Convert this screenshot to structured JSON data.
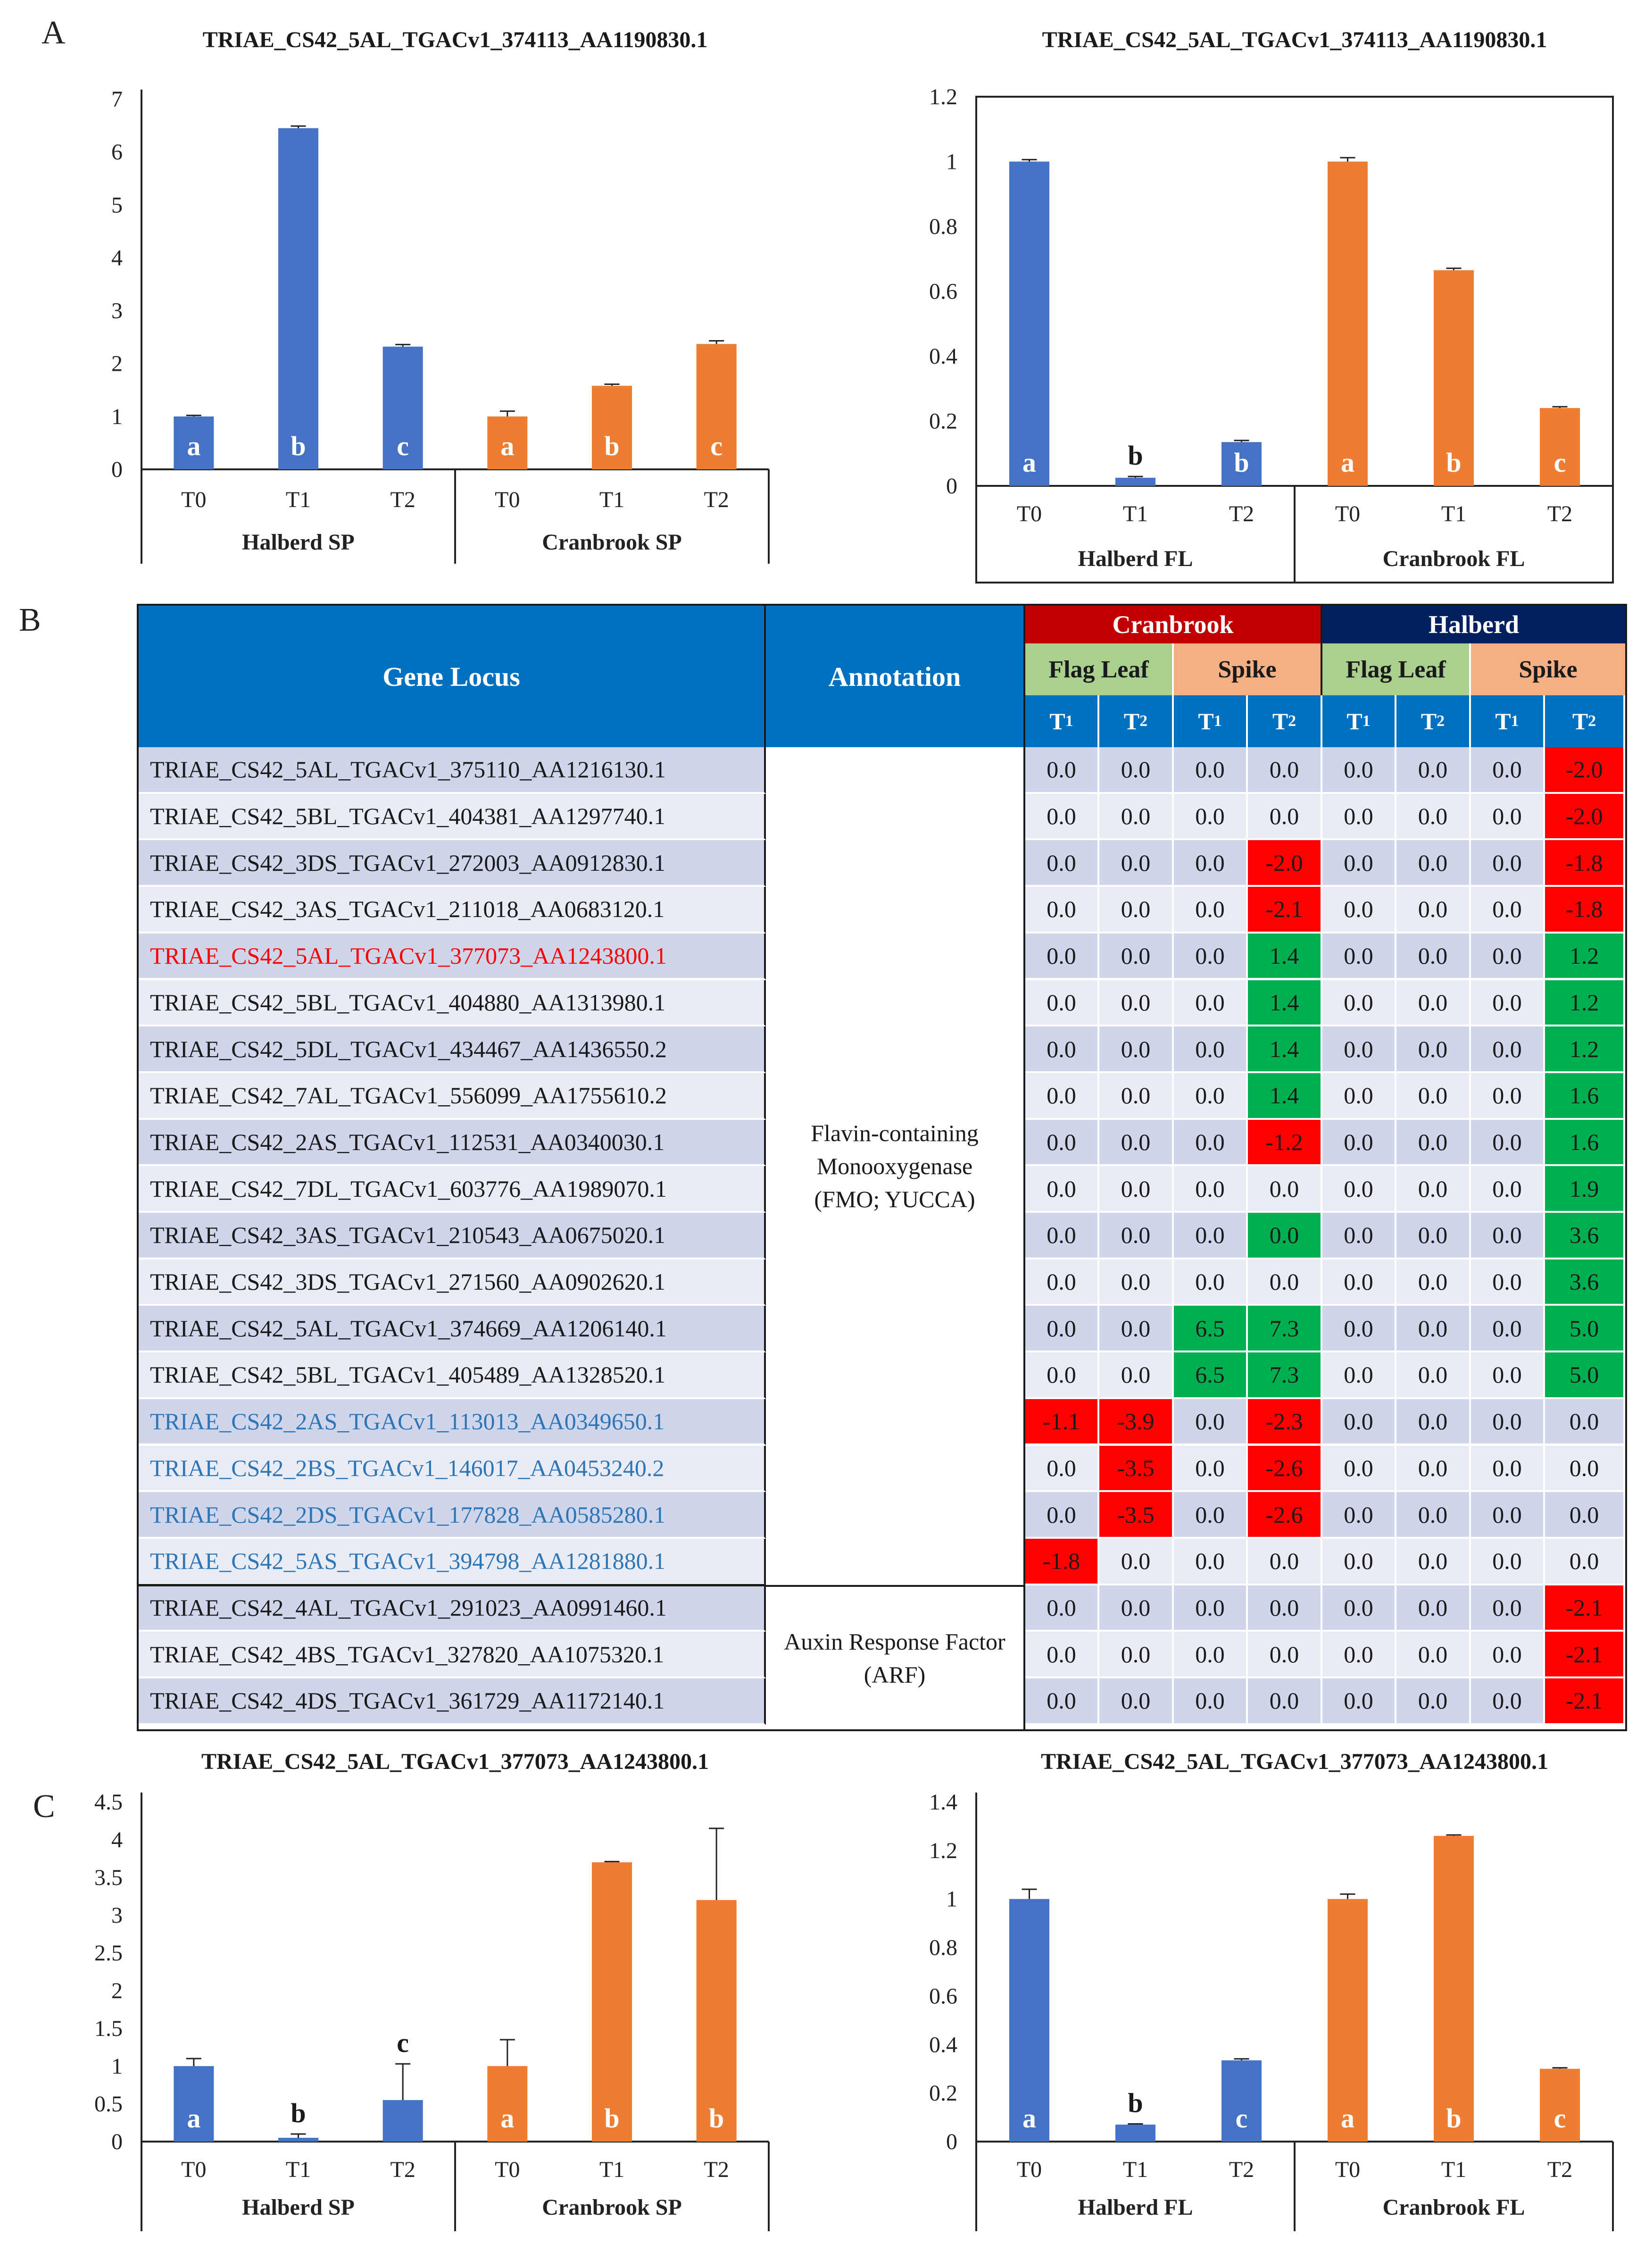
{
  "panel_labels": [
    "A",
    "B",
    "C"
  ],
  "chart_data": [
    {
      "id": "A-SP",
      "type": "bar",
      "title": "TRIAE_CS42_5AL_TGACv1_374113_AA1190830.1",
      "categories": [
        "T0",
        "T1",
        "T2",
        "T0",
        "T1",
        "T2"
      ],
      "groups": [
        "Halberd SP",
        "Cranbrook SP"
      ],
      "values": [
        1.0,
        6.45,
        2.32,
        1.0,
        1.58,
        2.37
      ],
      "errors": [
        0.02,
        0.04,
        0.04,
        0.1,
        0.03,
        0.06
      ],
      "colors": [
        "#4472C4",
        "#4472C4",
        "#4472C4",
        "#ED7D31",
        "#ED7D31",
        "#ED7D31"
      ],
      "sig": [
        "a",
        "b",
        "c",
        "a",
        "b",
        "c"
      ],
      "ylim": [
        0,
        7
      ],
      "yticks": [
        0,
        1,
        2,
        3,
        4,
        5,
        6,
        7
      ],
      "tick_decimals": 0,
      "xlabel": "",
      "ylabel": ""
    },
    {
      "id": "A-FL",
      "type": "bar",
      "title": "TRIAE_CS42_5AL_TGACv1_374113_AA1190830.1",
      "categories": [
        "T0",
        "T1",
        "T2",
        "T0",
        "T1",
        "T2"
      ],
      "groups": [
        "Halberd FL",
        "Cranbrook FL"
      ],
      "values": [
        1.0,
        0.025,
        0.135,
        1.0,
        0.665,
        0.24
      ],
      "errors": [
        0.006,
        0.004,
        0.005,
        0.012,
        0.006,
        0.004
      ],
      "colors": [
        "#4472C4",
        "#4472C4",
        "#4472C4",
        "#ED7D31",
        "#ED7D31",
        "#ED7D31"
      ],
      "sig": [
        "a",
        "b",
        "b",
        "a",
        "b",
        "c"
      ],
      "ylim": [
        0,
        1.2
      ],
      "yticks": [
        0,
        0.2,
        0.4,
        0.6,
        0.8,
        1,
        1.2
      ],
      "tick_decimals": 1,
      "xlabel": "",
      "ylabel": ""
    },
    {
      "id": "C-SP",
      "type": "bar",
      "title": "TRIAE_CS42_5AL_TGACv1_377073_AA1243800.1",
      "categories": [
        "T0",
        "T1",
        "T2",
        "T0",
        "T1",
        "T2"
      ],
      "groups": [
        "Halberd SP",
        "Cranbrook SP"
      ],
      "values": [
        1.0,
        0.05,
        0.55,
        1.0,
        3.7,
        3.2
      ],
      "errors": [
        0.1,
        0.05,
        0.48,
        0.35,
        0.01,
        0.95
      ],
      "colors": [
        "#4472C4",
        "#4472C4",
        "#4472C4",
        "#ED7D31",
        "#ED7D31",
        "#ED7D31"
      ],
      "sig": [
        "a",
        "b",
        "c",
        "a",
        "b",
        "b"
      ],
      "ylim": [
        0,
        4.5
      ],
      "yticks": [
        0,
        0.5,
        1,
        1.5,
        2,
        2.5,
        3,
        3.5,
        4,
        4.5
      ],
      "tick_decimals": 1,
      "xlabel": "",
      "ylabel": ""
    },
    {
      "id": "C-FL",
      "type": "bar",
      "title": "TRIAE_CS42_5AL_TGACv1_377073_AA1243800.1",
      "categories": [
        "T0",
        "T1",
        "T2",
        "T0",
        "T1",
        "T2"
      ],
      "groups": [
        "Halberd FL",
        "Cranbrook FL"
      ],
      "values": [
        1.0,
        0.07,
        0.335,
        1.0,
        1.26,
        0.3
      ],
      "errors": [
        0.04,
        0.003,
        0.006,
        0.02,
        0.004,
        0.004
      ],
      "colors": [
        "#4472C4",
        "#4472C4",
        "#4472C4",
        "#ED7D31",
        "#ED7D31",
        "#ED7D31"
      ],
      "sig": [
        "a",
        "b",
        "c",
        "a",
        "b",
        "c"
      ],
      "ylim": [
        0,
        1.4
      ],
      "yticks": [
        0,
        0.2,
        0.4,
        0.6,
        0.8,
        1,
        1.2,
        1.4
      ],
      "tick_decimals": 1,
      "xlabel": "",
      "ylabel": ""
    }
  ],
  "table": {
    "header": {
      "gene_locus": "Gene Locus",
      "annotation": "Annotation",
      "cranbrook": "Cranbrook",
      "halberd": "Halberd",
      "flag_leaf": "Flag Leaf",
      "spike": "Spike",
      "t1": "T",
      "t2": "T",
      "t1_sub": "1",
      "t2_sub": "2"
    },
    "annotations": [
      {
        "text": "Flavin-containing Monooxygenase (FMO; YUCCA)",
        "lines": [
          "Flavin-containing",
          "Monooxygenase",
          "(FMO; YUCCA)"
        ]
      },
      {
        "text": "Auxin Response Factor (ARF)",
        "lines": [
          "Auxin Response Factor",
          "(ARF)"
        ]
      }
    ],
    "colors": {
      "up": "#00B050",
      "down": "#FF0000",
      "neutral_dark": "#CFD5EA",
      "neutral_light": "#E9EBF5",
      "highlight_red_text": "#FF0000",
      "highlight_blue_text": "#2E75B6"
    },
    "rows": [
      {
        "gene": "TRIAE_CS42_5AL_TGACv1_375110_AA1216130.1",
        "color": "normal",
        "values": [
          0.0,
          0.0,
          0.0,
          0.0,
          0.0,
          0.0,
          0.0,
          -2.0
        ]
      },
      {
        "gene": "TRIAE_CS42_5BL_TGACv1_404381_AA1297740.1",
        "color": "normal",
        "values": [
          0.0,
          0.0,
          0.0,
          0.0,
          0.0,
          0.0,
          0.0,
          -2.0
        ]
      },
      {
        "gene": "TRIAE_CS42_3DS_TGACv1_272003_AA0912830.1",
        "color": "normal",
        "values": [
          0.0,
          0.0,
          0.0,
          -2.0,
          0.0,
          0.0,
          0.0,
          -1.8
        ]
      },
      {
        "gene": "TRIAE_CS42_3AS_TGACv1_211018_AA0683120.1",
        "color": "normal",
        "values": [
          0.0,
          0.0,
          0.0,
          -2.1,
          0.0,
          0.0,
          0.0,
          -1.8
        ]
      },
      {
        "gene": "TRIAE_CS42_5AL_TGACv1_377073_AA1243800.1",
        "color": "red",
        "values": [
          0.0,
          0.0,
          0.0,
          1.4,
          0.0,
          0.0,
          0.0,
          1.2
        ]
      },
      {
        "gene": "TRIAE_CS42_5BL_TGACv1_404880_AA1313980.1",
        "color": "normal",
        "values": [
          0.0,
          0.0,
          0.0,
          1.4,
          0.0,
          0.0,
          0.0,
          1.2
        ]
      },
      {
        "gene": "TRIAE_CS42_5DL_TGACv1_434467_AA1436550.2",
        "color": "normal",
        "values": [
          0.0,
          0.0,
          0.0,
          1.4,
          0.0,
          0.0,
          0.0,
          1.2
        ]
      },
      {
        "gene": "TRIAE_CS42_7AL_TGACv1_556099_AA1755610.2",
        "color": "normal",
        "values": [
          0.0,
          0.0,
          0.0,
          1.4,
          0.0,
          0.0,
          0.0,
          1.6
        ]
      },
      {
        "gene": "TRIAE_CS42_2AS_TGACv1_112531_AA0340030.1",
        "color": "normal",
        "values": [
          0.0,
          0.0,
          0.0,
          -1.2,
          0.0,
          0.0,
          0.0,
          1.6
        ]
      },
      {
        "gene": "TRIAE_CS42_7DL_TGACv1_603776_AA1989070.1",
        "color": "normal",
        "values": [
          0.0,
          0.0,
          0.0,
          0.0,
          0.0,
          0.0,
          0.0,
          1.9
        ]
      },
      {
        "gene": "TRIAE_CS42_3AS_TGACv1_210543_AA0675020.1",
        "color": "normal",
        "values": [
          0.0,
          0.0,
          0.0,
          0.0,
          0.0,
          0.0,
          0.0,
          3.6
        ],
        "forced_up": [
          3
        ]
      },
      {
        "gene": "TRIAE_CS42_3DS_TGACv1_271560_AA0902620.1",
        "color": "normal",
        "values": [
          0.0,
          0.0,
          0.0,
          0.0,
          0.0,
          0.0,
          0.0,
          3.6
        ]
      },
      {
        "gene": "TRIAE_CS42_5AL_TGACv1_374669_AA1206140.1",
        "color": "normal",
        "values": [
          0.0,
          0.0,
          6.5,
          7.3,
          0.0,
          0.0,
          0.0,
          5.0
        ]
      },
      {
        "gene": "TRIAE_CS42_5BL_TGACv1_405489_AA1328520.1",
        "color": "normal",
        "values": [
          0.0,
          0.0,
          6.5,
          7.3,
          0.0,
          0.0,
          0.0,
          5.0
        ]
      },
      {
        "gene": "TRIAE_CS42_2AS_TGACv1_113013_AA0349650.1",
        "color": "blue",
        "values": [
          -1.1,
          -3.9,
          0.0,
          -2.3,
          0.0,
          0.0,
          0.0,
          0.0
        ]
      },
      {
        "gene": "TRIAE_CS42_2BS_TGACv1_146017_AA0453240.2",
        "color": "blue",
        "values": [
          0.0,
          -3.5,
          0.0,
          -2.6,
          0.0,
          0.0,
          0.0,
          0.0
        ]
      },
      {
        "gene": "TRIAE_CS42_2DS_TGACv1_177828_AA0585280.1",
        "color": "blue",
        "values": [
          0.0,
          -3.5,
          0.0,
          -2.6,
          0.0,
          0.0,
          0.0,
          0.0
        ]
      },
      {
        "gene": "TRIAE_CS42_5AS_TGACv1_394798_AA1281880.1",
        "color": "blue",
        "values": [
          -1.8,
          0.0,
          0.0,
          0.0,
          0.0,
          0.0,
          0.0,
          0.0
        ]
      },
      {
        "gene": "TRIAE_CS42_4AL_TGACv1_291023_AA0991460.1",
        "color": "normal",
        "values": [
          0.0,
          0.0,
          0.0,
          0.0,
          0.0,
          0.0,
          0.0,
          -2.1
        ]
      },
      {
        "gene": "TRIAE_CS42_4BS_TGACv1_327820_AA1075320.1",
        "color": "normal",
        "values": [
          0.0,
          0.0,
          0.0,
          0.0,
          0.0,
          0.0,
          0.0,
          -2.1
        ]
      },
      {
        "gene": "TRIAE_CS42_4DS_TGACv1_361729_AA1172140.1",
        "color": "normal",
        "values": [
          0.0,
          0.0,
          0.0,
          0.0,
          0.0,
          0.0,
          0.0,
          -2.1
        ]
      }
    ]
  }
}
